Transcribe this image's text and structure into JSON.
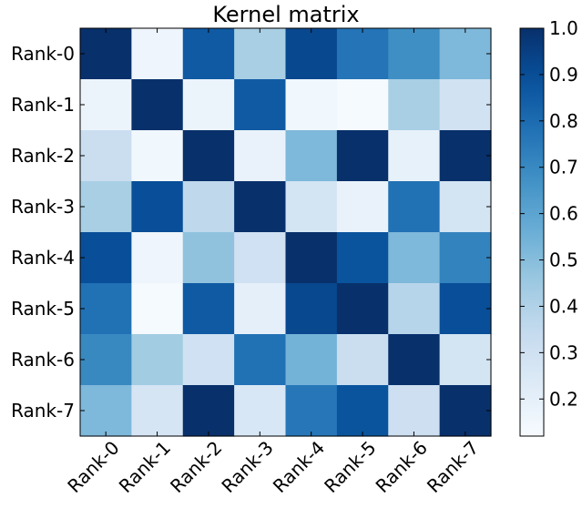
{
  "chart_data": {
    "type": "heatmap",
    "title": "Kernel matrix",
    "xlabel": "",
    "ylabel": "",
    "row_labels": [
      "Rank-0",
      "Rank-1",
      "Rank-2",
      "Rank-3",
      "Rank-4",
      "Rank-5",
      "Rank-6",
      "Rank-7"
    ],
    "col_labels": [
      "Rank-0",
      "Rank-1",
      "Rank-2",
      "Rank-3",
      "Rank-4",
      "Rank-5",
      "Rank-6",
      "Rank-7"
    ],
    "values": [
      [
        1.0,
        0.16,
        0.86,
        0.42,
        0.92,
        0.77,
        0.68,
        0.52
      ],
      [
        0.17,
        1.0,
        0.17,
        0.86,
        0.15,
        0.13,
        0.42,
        0.29
      ],
      [
        0.32,
        0.15,
        1.0,
        0.18,
        0.52,
        1.0,
        0.19,
        1.0
      ],
      [
        0.42,
        0.9,
        0.36,
        1.0,
        0.28,
        0.18,
        0.78,
        0.28
      ],
      [
        0.9,
        0.16,
        0.48,
        0.3,
        1.0,
        0.88,
        0.52,
        0.72
      ],
      [
        0.78,
        0.13,
        0.86,
        0.2,
        0.92,
        1.0,
        0.38,
        0.9
      ],
      [
        0.7,
        0.44,
        0.3,
        0.78,
        0.54,
        0.32,
        1.0,
        0.28
      ],
      [
        0.52,
        0.27,
        1.0,
        0.26,
        0.76,
        0.88,
        0.31,
        1.0
      ]
    ],
    "colormap": "Blues",
    "vmin": 0.12,
    "vmax": 1.0,
    "colorbar_ticks": [
      0.2,
      0.3,
      0.4,
      0.5,
      0.6,
      0.7,
      0.8,
      0.9,
      1.0
    ],
    "colorbar_tick_labels": [
      "0.2",
      "0.3",
      "0.4",
      "0.5",
      "0.6",
      "0.7",
      "0.8",
      "0.9",
      "1.0"
    ]
  }
}
